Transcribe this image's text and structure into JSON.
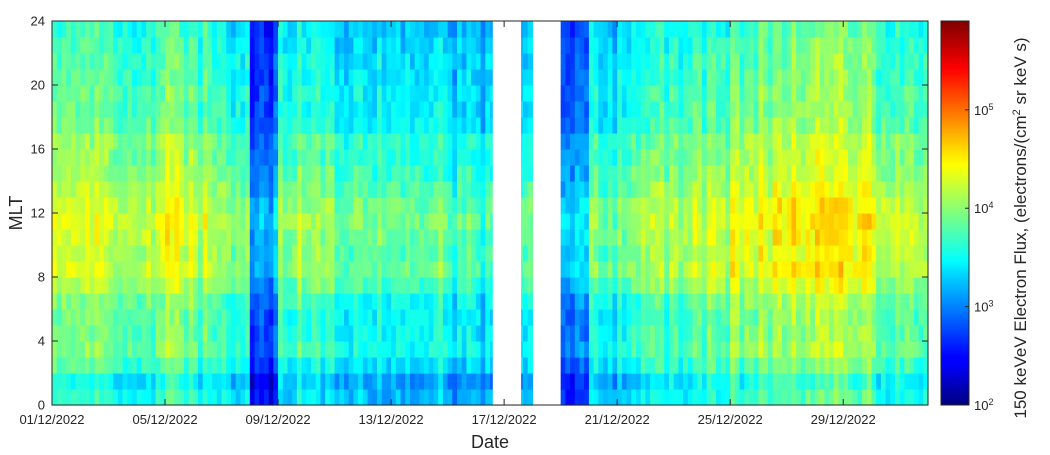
{
  "chart_data": {
    "type": "heatmap",
    "xlabel": "Date",
    "ylabel": "MLT",
    "x_tick_labels": [
      "01/12/2022",
      "05/12/2022",
      "09/12/2022",
      "13/12/2022",
      "17/12/2022",
      "21/12/2022",
      "25/12/2022",
      "29/12/2022"
    ],
    "x_range": [
      "01/12/2022",
      "01/01/2023"
    ],
    "y_ticks": [
      0,
      4,
      8,
      12,
      16,
      20,
      24
    ],
    "y_range": [
      0,
      24
    ],
    "colorscale": "jet",
    "colorbar": {
      "label_parts": [
        "150 keVeV Electron Flux, (electrons/(cm",
        "2",
        " sr keV s)"
      ],
      "scale": "log",
      "range": [
        100,
        800000
      ],
      "tick_values": [
        100,
        1000,
        10000,
        100000
      ],
      "tick_labels": [
        {
          "base": "10",
          "exp": "2"
        },
        {
          "base": "10",
          "exp": "3"
        },
        {
          "base": "10",
          "exp": "4"
        },
        {
          "base": "10",
          "exp": "5"
        }
      ]
    },
    "data_gap": {
      "start": "17/12/2022",
      "end": "18/12/2022",
      "note_units": "days"
    },
    "mlt_profile_log10_flux": [
      3.45,
      3.35,
      3.6,
      3.75,
      3.7,
      3.7,
      3.75,
      3.95,
      4.1,
      4.05,
      4.1,
      4.15,
      4.1,
      4.0,
      3.9,
      3.85,
      3.85,
      3.7,
      3.65,
      3.65,
      3.6,
      3.6,
      3.55,
      3.5
    ],
    "daily_mean_log10_flux": [
      3.95,
      3.9,
      3.75,
      3.9,
      4.05,
      3.9,
      3.65,
      2.9,
      3.75,
      3.7,
      3.6,
      3.55,
      3.5,
      3.55,
      3.45,
      3.35,
      3.6,
      null,
      2.95,
      3.55,
      3.65,
      3.75,
      3.8,
      3.9,
      4.0,
      4.05,
      4.15,
      4.25,
      4.1,
      3.95,
      3.9,
      3.85
    ],
    "grid": false,
    "legend": "colorbar-right"
  }
}
